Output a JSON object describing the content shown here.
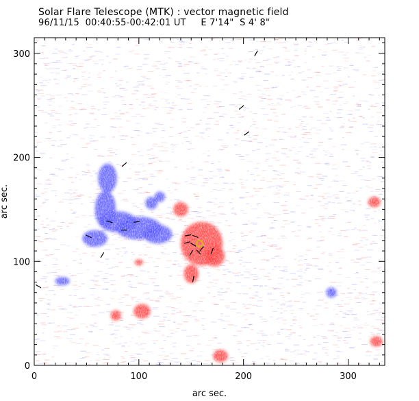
{
  "chart_data": {
    "type": "heatmap",
    "title": "Solar Flare Telescope (MTK) : vector magnetic field",
    "subtitle": "96/11/15  00:40:55-00:42:01 UT     E 7'14\"  S 4' 8\"",
    "xlabel": "arc sec.",
    "ylabel": "arc sec.",
    "xlim": [
      0,
      335
    ],
    "ylim": [
      0,
      315
    ],
    "xticks": [
      0,
      100,
      200,
      300
    ],
    "yticks": [
      0,
      100,
      200,
      300
    ],
    "colors": {
      "positive_polarity": "#ff4040",
      "negative_polarity": "#5a5aff",
      "background": "#ffffff",
      "transverse_vectors": "#000000",
      "marker": "#c8c800"
    },
    "negative_regions": [
      {
        "x": 70,
        "y": 180,
        "rx": 9,
        "ry": 14
      },
      {
        "x": 68,
        "y": 150,
        "rx": 10,
        "ry": 18
      },
      {
        "x": 80,
        "y": 138,
        "rx": 18,
        "ry": 10
      },
      {
        "x": 100,
        "y": 132,
        "rx": 22,
        "ry": 11
      },
      {
        "x": 118,
        "y": 126,
        "rx": 14,
        "ry": 9
      },
      {
        "x": 58,
        "y": 122,
        "rx": 12,
        "ry": 8
      },
      {
        "x": 112,
        "y": 156,
        "rx": 6,
        "ry": 6
      },
      {
        "x": 120,
        "y": 162,
        "rx": 5,
        "ry": 5
      },
      {
        "x": 27,
        "y": 81,
        "rx": 7,
        "ry": 4
      },
      {
        "x": 284,
        "y": 70,
        "rx": 5,
        "ry": 5
      }
    ],
    "positive_regions": [
      {
        "x": 160,
        "y": 117,
        "rx": 20,
        "ry": 21
      },
      {
        "x": 172,
        "y": 105,
        "rx": 10,
        "ry": 10
      },
      {
        "x": 150,
        "y": 88,
        "rx": 7,
        "ry": 9
      },
      {
        "x": 140,
        "y": 150,
        "rx": 7,
        "ry": 7
      },
      {
        "x": 103,
        "y": 52,
        "rx": 8,
        "ry": 7
      },
      {
        "x": 78,
        "y": 48,
        "rx": 5,
        "ry": 5
      },
      {
        "x": 325,
        "y": 157,
        "rx": 6,
        "ry": 5
      },
      {
        "x": 327,
        "y": 23,
        "rx": 6,
        "ry": 5
      },
      {
        "x": 178,
        "y": 9,
        "rx": 7,
        "ry": 6
      },
      {
        "x": 100,
        "y": 99,
        "rx": 4,
        "ry": 3
      }
    ],
    "vectors": [
      {
        "x": 212,
        "y": 300,
        "angle": 60
      },
      {
        "x": 198,
        "y": 248,
        "angle": 40
      },
      {
        "x": 203,
        "y": 223,
        "angle": 35
      },
      {
        "x": 86,
        "y": 193,
        "angle": 40
      },
      {
        "x": 72,
        "y": 138,
        "angle": -15
      },
      {
        "x": 86,
        "y": 130,
        "angle": 0
      },
      {
        "x": 98,
        "y": 138,
        "angle": 10
      },
      {
        "x": 52,
        "y": 124,
        "angle": -25
      },
      {
        "x": 65,
        "y": 106,
        "angle": 60
      },
      {
        "x": 147,
        "y": 125,
        "angle": 10
      },
      {
        "x": 154,
        "y": 124,
        "angle": -20
      },
      {
        "x": 146,
        "y": 118,
        "angle": 15
      },
      {
        "x": 152,
        "y": 116,
        "angle": -30
      },
      {
        "x": 160,
        "y": 112,
        "angle": 50
      },
      {
        "x": 157,
        "y": 109,
        "angle": -45
      },
      {
        "x": 150,
        "y": 108,
        "angle": 60
      },
      {
        "x": 170,
        "y": 110,
        "angle": 70
      },
      {
        "x": 152,
        "y": 83,
        "angle": 80
      },
      {
        "x": 4,
        "y": 76,
        "angle": -30
      }
    ],
    "marker": {
      "x": 158,
      "y": 117,
      "r": 3
    }
  }
}
